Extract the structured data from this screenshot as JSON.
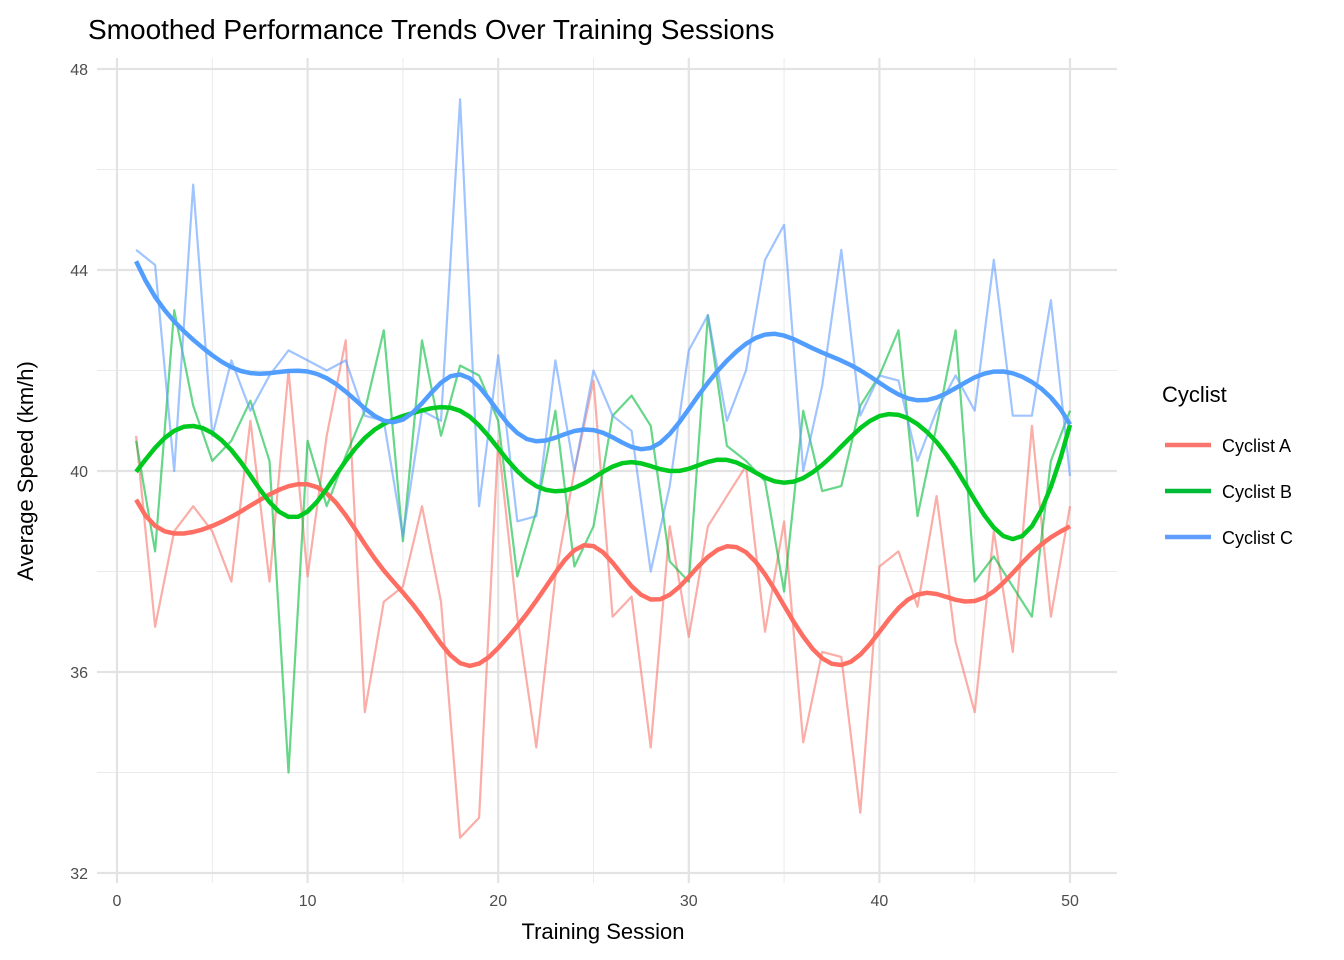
{
  "chart_data": {
    "type": "line",
    "title": "Smoothed Performance Trends Over Training Sessions",
    "xlabel": "Training Session",
    "ylabel": "Average Speed (km/h)",
    "xlim": [
      0,
      50
    ],
    "ylim": [
      32,
      48
    ],
    "x_ticks": [
      0,
      10,
      20,
      30,
      40,
      50
    ],
    "y_ticks": [
      32,
      36,
      40,
      44,
      48
    ],
    "x_tick_labels": [
      "0",
      "10",
      "20",
      "30",
      "40",
      "50"
    ],
    "y_tick_labels": [
      "32",
      "36",
      "40",
      "44",
      "48"
    ],
    "grid": true,
    "legend": {
      "title": "Cyclist",
      "position": "right"
    },
    "smoothing": "loess",
    "x": [
      1,
      2,
      3,
      4,
      5,
      6,
      7,
      8,
      9,
      10,
      11,
      12,
      13,
      14,
      15,
      16,
      17,
      18,
      19,
      20,
      21,
      22,
      23,
      24,
      25,
      26,
      27,
      28,
      29,
      30,
      31,
      32,
      33,
      34,
      35,
      36,
      37,
      38,
      39,
      40,
      41,
      42,
      43,
      44,
      45,
      46,
      47,
      48,
      49,
      50
    ],
    "series": [
      {
        "name": "Cyclist A",
        "color": "#F8766D",
        "values": [
          40.7,
          36.9,
          38.8,
          39.3,
          38.8,
          37.8,
          41.0,
          37.8,
          42.0,
          37.9,
          40.7,
          42.6,
          35.2,
          37.4,
          37.7,
          39.3,
          37.4,
          32.7,
          33.1,
          40.6,
          37.1,
          34.5,
          37.9,
          40.0,
          41.8,
          37.1,
          37.5,
          34.5,
          38.9,
          36.7,
          38.9,
          39.5,
          40.1,
          36.8,
          39.0,
          34.6,
          36.4,
          36.3,
          33.2,
          38.1,
          38.4,
          37.3,
          39.5,
          36.6,
          35.2,
          38.8,
          36.4,
          40.9,
          37.1,
          39.3
        ]
      },
      {
        "name": "Cyclist B",
        "color": "#00BA38",
        "values": [
          40.6,
          38.4,
          43.2,
          41.3,
          40.2,
          40.6,
          41.4,
          40.2,
          34.0,
          40.6,
          39.3,
          40.3,
          41.2,
          42.8,
          38.6,
          42.6,
          40.7,
          42.1,
          41.9,
          41.0,
          37.9,
          39.2,
          41.2,
          38.1,
          38.9,
          41.1,
          41.5,
          40.9,
          38.2,
          37.8,
          43.1,
          40.5,
          40.2,
          39.8,
          37.6,
          41.2,
          39.6,
          39.7,
          41.3,
          41.9,
          42.8,
          39.1,
          40.9,
          42.8,
          37.8,
          38.3,
          37.7,
          37.1,
          40.2,
          41.2
        ]
      },
      {
        "name": "Cyclist C",
        "color": "#619CFF",
        "values": [
          44.4,
          44.1,
          40.0,
          45.7,
          40.7,
          42.2,
          41.2,
          41.9,
          42.4,
          42.2,
          42.0,
          42.2,
          41.1,
          41.0,
          38.7,
          41.2,
          41.0,
          47.4,
          39.3,
          42.3,
          39.0,
          39.1,
          42.2,
          40.0,
          42.0,
          41.1,
          40.8,
          38.0,
          39.7,
          42.4,
          43.1,
          41.0,
          42.0,
          44.2,
          44.9,
          40.0,
          41.7,
          44.4,
          41.1,
          41.9,
          41.8,
          40.2,
          41.2,
          41.9,
          41.2,
          44.2,
          41.1,
          41.1,
          43.4,
          39.9
        ]
      }
    ]
  }
}
